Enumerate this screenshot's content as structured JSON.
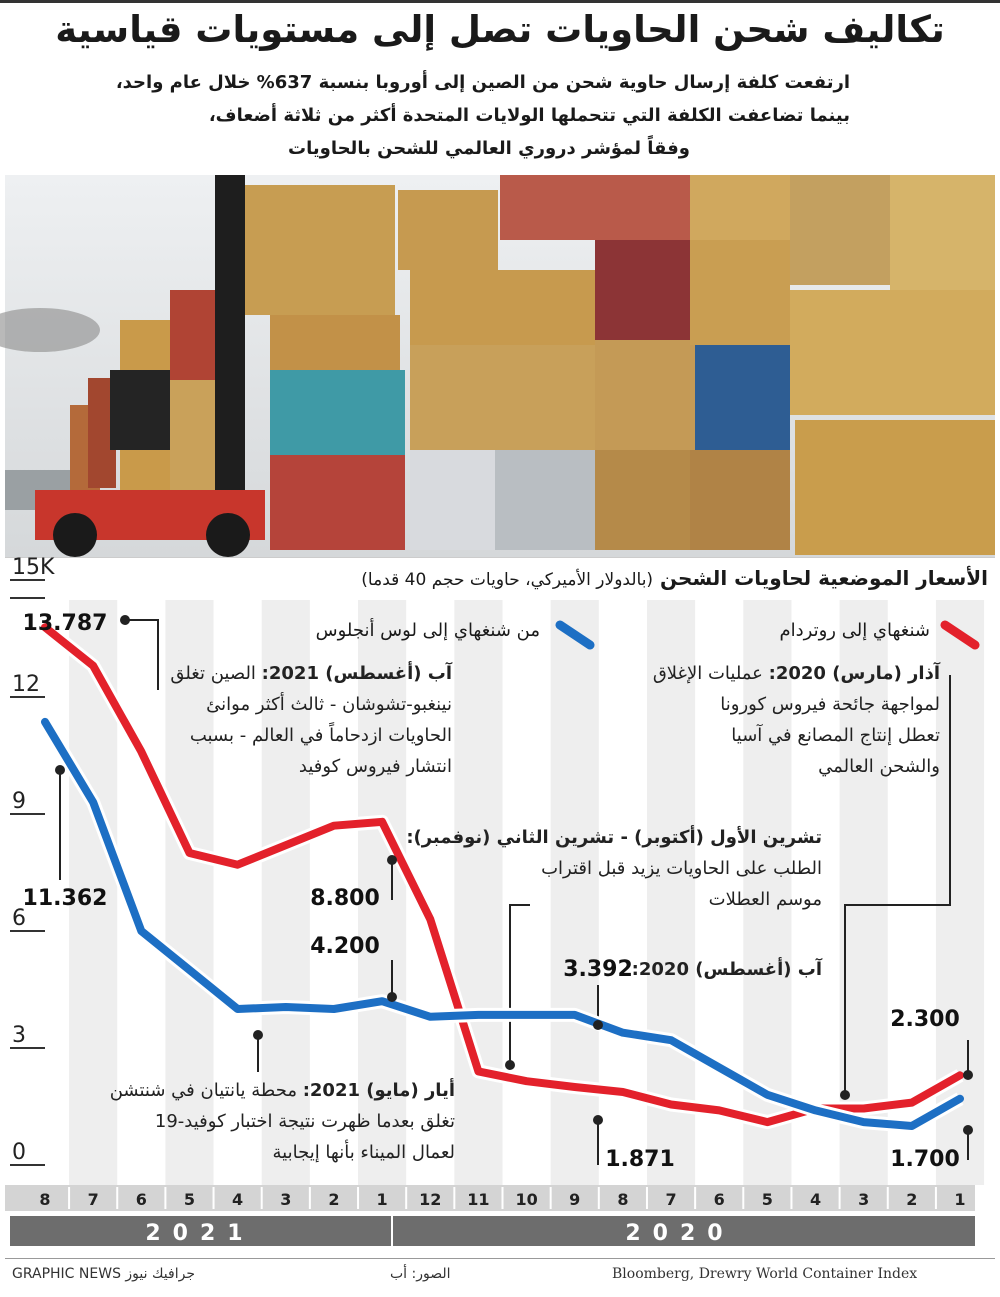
{
  "header": {
    "title": "تكاليف شحن الحاويات تصل إلى مستويات قياسية",
    "subtitle": [
      "ارتفعت كلفة إرسال حاوية شحن من الصين إلى أوروبا بنسبة 637% خلال عام واحد،",
      "بينما تضاعفت الكلفة التي تتحملها الولايات المتحدة أكثر من ثلاثة أضعاف،",
      "وفقاً لمؤشر دروري العالمي للشحن بالحاويات"
    ]
  },
  "chart_data": {
    "type": "line",
    "title": "الأسعار الموضعية لحاويات الشحن",
    "subtitle": "(بالدولار الأميركي، حاويات حجم 40 قدما)",
    "categories": [
      "1",
      "2",
      "3",
      "4",
      "5",
      "6",
      "7",
      "8",
      "9",
      "10",
      "11",
      "12",
      "1",
      "2",
      "3",
      "4",
      "5",
      "6",
      "7",
      "8"
    ],
    "years": [
      "2020",
      "2021"
    ],
    "ylim": [
      0,
      15
    ],
    "yticks": [
      0,
      3,
      6,
      9,
      12,
      {
        "value": 15,
        "label": "15K"
      }
    ],
    "series": [
      {
        "name": "شنغهاي إلى روتردام",
        "color": "#e3212b",
        "values": [
          2.3,
          1.6,
          1.45,
          1.45,
          1.1,
          1.4,
          1.55,
          1.871,
          2.0,
          2.15,
          2.4,
          6.3,
          8.8,
          8.7,
          8.2,
          7.7,
          8.0,
          10.6,
          12.8,
          13.787
        ],
        "value_labels": [
          "2.300",
          null,
          null,
          null,
          null,
          null,
          null,
          "1.871",
          null,
          null,
          null,
          null,
          "8.800",
          null,
          null,
          null,
          null,
          null,
          null,
          "13.787"
        ]
      },
      {
        "name": "من شنغهاي إلى لوس أنجلوس",
        "color": "#1d6fc4",
        "values": [
          1.7,
          1.0,
          1.1,
          1.4,
          1.8,
          2.5,
          3.2,
          3.392,
          3.85,
          3.85,
          3.85,
          3.8,
          4.2,
          4.0,
          4.05,
          4.0,
          5.0,
          6.0,
          9.3,
          11.362
        ],
        "value_labels": [
          "1.700",
          null,
          null,
          null,
          null,
          null,
          null,
          "3.392",
          null,
          null,
          null,
          null,
          "4.200",
          null,
          null,
          null,
          null,
          null,
          null,
          "11.362"
        ]
      }
    ],
    "annotations": [
      {
        "heading": "آب (أغسطس) 2021:",
        "lines": [
          "الصين تغلق",
          "نينغبو-تشوشان - ثالث أكثر موانئ",
          "الحاويات ازدحاماً في العالم - بسبب",
          "انتشار فيروس كوفيد"
        ]
      },
      {
        "heading": "آذار (مارس) 2020:",
        "lines": [
          "عمليات الإغلاق",
          "لمواجهة جائحة فيروس كورونا",
          "تعطل إنتاج المصانع في آسيا",
          "والشحن العالمي"
        ]
      },
      {
        "heading": "تشرين الأول (أكتوبر) - تشرين الثاني (نوفمبر):",
        "lines": [
          "الطلب على الحاويات يزيد قبل اقتراب",
          "موسم العطلات"
        ]
      },
      {
        "heading": "آب (أغسطس) 2020:",
        "lines": []
      },
      {
        "heading": "أيار (مايو) 2021:",
        "lines": [
          "محطة يانتيان في شنتشن",
          "تغلق بعدما ظهرت نتيجة اختبار كوفيد-19",
          "لعمال الميناء بأنها إيجابية"
        ]
      }
    ]
  },
  "footer": {
    "credit": "GRAPHIC NEWS جرافيك نيوز",
    "photo": "الصور: أب",
    "source": "Bloomberg, Drewry World Container Index"
  }
}
